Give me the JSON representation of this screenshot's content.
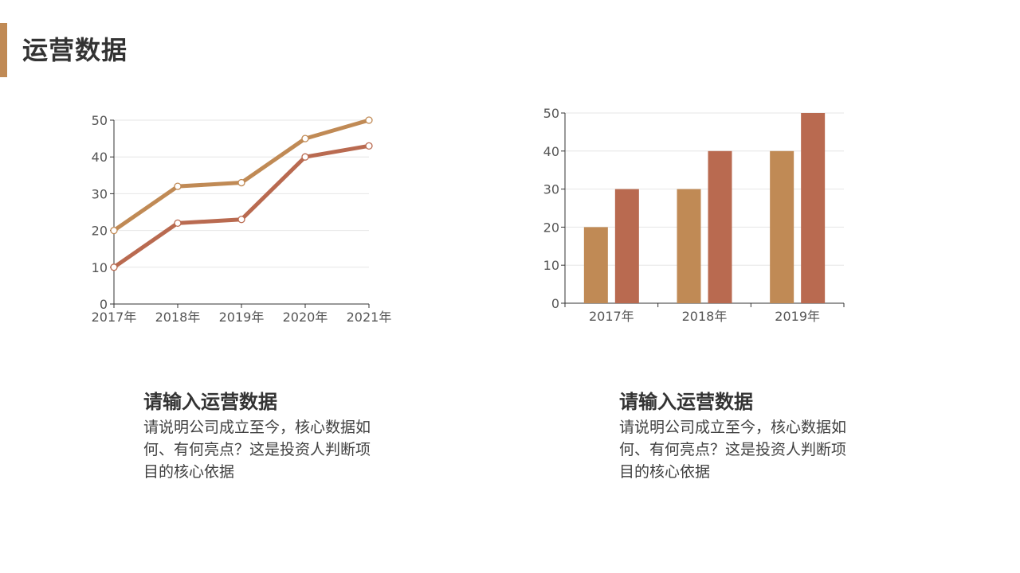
{
  "page": {
    "title": "运营数据",
    "accent_color": "#c08a55"
  },
  "chart_data": [
    {
      "type": "line",
      "x": [
        "2017年",
        "2018年",
        "2019年",
        "2020年",
        "2021年"
      ],
      "series": [
        {
          "values": [
            20,
            32,
            33,
            45,
            50
          ],
          "color": "#c08a55"
        },
        {
          "values": [
            10,
            22,
            23,
            40,
            43
          ],
          "color": "#b96a50"
        }
      ],
      "ylim": [
        0,
        50
      ],
      "yticks": [
        0,
        10,
        20,
        30,
        40,
        50
      ],
      "grid": true,
      "legend": "none"
    },
    {
      "type": "bar",
      "categories": [
        "2017年",
        "2018年",
        "2019年"
      ],
      "series": [
        {
          "values": [
            20,
            30,
            40
          ],
          "color": "#c08a55"
        },
        {
          "values": [
            30,
            40,
            50
          ],
          "color": "#b96a50"
        }
      ],
      "ylim": [
        0,
        50
      ],
      "yticks": [
        0,
        10,
        20,
        30,
        40,
        50
      ],
      "grid": true,
      "legend": "none"
    }
  ],
  "cards": [
    {
      "title": "请输入运营数据",
      "body": "请说明公司成立至今，核心数据如何、有何亮点？这是投资人判断项目的核心依据"
    },
    {
      "title": "请输入运营数据",
      "body": "请说明公司成立至今，核心数据如何、有何亮点？这是投资人判断项目的核心依据"
    }
  ]
}
